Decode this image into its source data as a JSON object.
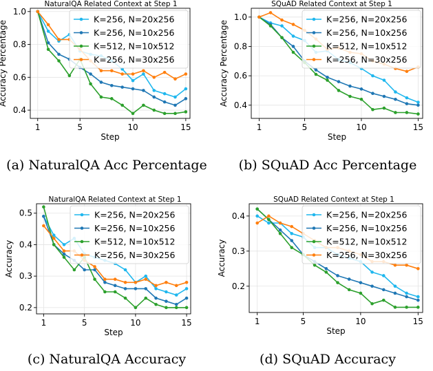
{
  "colors": {
    "K=256, N=20x256": "#1fb7ee",
    "K=256, N=10x256": "#1f77b4",
    "K=512, N=10x512": "#2ca02c",
    "K=256, N=30x256": "#ff7f0e"
  },
  "chart_data": [
    {
      "type": "line",
      "title": "NaturalQA Related Context at Step 1",
      "caption": "(a) NaturalQA Acc Percentage",
      "xlabel": "Step",
      "ylabel": "Accuracy Percentage",
      "xlim": [
        0.3,
        15.4
      ],
      "ylim": [
        0.35,
        1.02
      ],
      "xticks": [
        1,
        5,
        10,
        15
      ],
      "yticks": [
        0.4,
        0.6,
        0.8,
        1.0
      ],
      "ytick_labels": [
        "0.4",
        "0.6",
        "0.8",
        "1.0"
      ],
      "grid": true,
      "legend_position": "top-right",
      "x": [
        1,
        2,
        3,
        4,
        5,
        6,
        7,
        8,
        9,
        10,
        11,
        12,
        13,
        14,
        15
      ],
      "series": [
        {
          "name": "K=256, N=20x256",
          "values": [
            1.0,
            0.88,
            0.82,
            0.86,
            0.76,
            0.74,
            0.73,
            0.7,
            0.65,
            0.58,
            0.62,
            0.52,
            0.5,
            0.48,
            0.53
          ]
        },
        {
          "name": "K=256, N=10x256",
          "values": [
            1.0,
            0.81,
            0.74,
            0.71,
            0.66,
            0.62,
            0.57,
            0.55,
            0.54,
            0.53,
            0.52,
            0.48,
            0.45,
            0.43,
            0.47
          ]
        },
        {
          "name": "K=512, N=10x512",
          "values": [
            1.0,
            0.77,
            0.7,
            0.61,
            0.71,
            0.56,
            0.48,
            0.47,
            0.43,
            0.38,
            0.43,
            0.4,
            0.38,
            0.38,
            0.39
          ]
        },
        {
          "name": "K=256, N=30x256",
          "values": [
            1.0,
            0.92,
            0.83,
            0.83,
            0.77,
            0.7,
            0.64,
            0.64,
            0.62,
            0.62,
            0.64,
            0.6,
            0.63,
            0.59,
            0.62
          ]
        }
      ]
    },
    {
      "type": "line",
      "title": "SQuAD Related Context at Step 1",
      "caption": "(b) SQuAD Acc Percentage",
      "xlabel": "Step",
      "ylabel": "Accuracy Percentage",
      "xlim": [
        0.3,
        15.4
      ],
      "ylim": [
        0.31,
        1.06
      ],
      "xticks": [
        1,
        5,
        10,
        15
      ],
      "yticks": [
        0.4,
        0.6,
        0.8,
        1.0
      ],
      "ytick_labels": [
        "0.4",
        "0.6",
        "0.8",
        "1.0"
      ],
      "grid": true,
      "legend_position": "top-right",
      "x": [
        1,
        2,
        3,
        4,
        5,
        6,
        7,
        8,
        9,
        10,
        11,
        12,
        13,
        14,
        15
      ],
      "series": [
        {
          "name": "K=256, N=20x256",
          "values": [
            1.0,
            0.96,
            0.94,
            0.87,
            0.84,
            0.76,
            0.77,
            0.71,
            0.69,
            0.65,
            0.6,
            0.57,
            0.49,
            0.45,
            0.42
          ]
        },
        {
          "name": "K=256, N=10x256",
          "values": [
            1.0,
            0.95,
            0.86,
            0.8,
            0.7,
            0.64,
            0.59,
            0.56,
            0.53,
            0.51,
            0.48,
            0.46,
            0.44,
            0.41,
            0.4
          ]
        },
        {
          "name": "K=512, N=10x512",
          "values": [
            1.0,
            0.94,
            0.86,
            0.76,
            0.69,
            0.61,
            0.57,
            0.5,
            0.46,
            0.44,
            0.37,
            0.38,
            0.35,
            0.35,
            0.34
          ]
        },
        {
          "name": "K=256, N=30x256",
          "values": [
            1.0,
            1.03,
            0.98,
            0.95,
            0.91,
            0.85,
            0.78,
            0.79,
            0.76,
            0.75,
            0.7,
            0.68,
            0.65,
            0.63,
            0.66
          ]
        }
      ]
    },
    {
      "type": "line",
      "title": "NaturalQA Related Context at Step 1",
      "caption": "(c) NaturalQA Accuracy",
      "xlabel": "Step",
      "ylabel": "Accuracy",
      "xlim": [
        0.3,
        15.4
      ],
      "ylim": [
        0.18,
        0.53
      ],
      "xticks": [
        1,
        5,
        10,
        15
      ],
      "yticks": [
        0.2,
        0.3,
        0.4,
        0.5
      ],
      "ytick_labels": [
        "0.2",
        "0.3",
        "0.4",
        "0.5"
      ],
      "grid": true,
      "legend_position": "top-right",
      "x": [
        1,
        2,
        3,
        4,
        5,
        6,
        7,
        8,
        9,
        10,
        11,
        12,
        13,
        14,
        15
      ],
      "series": [
        {
          "name": "K=256, N=20x256",
          "values": [
            0.49,
            0.43,
            0.4,
            0.42,
            0.37,
            0.36,
            0.35,
            0.34,
            0.32,
            0.28,
            0.3,
            0.26,
            0.25,
            0.24,
            0.26
          ]
        },
        {
          "name": "K=256, N=10x256",
          "values": [
            0.49,
            0.4,
            0.37,
            0.35,
            0.32,
            0.32,
            0.28,
            0.27,
            0.26,
            0.26,
            0.26,
            0.23,
            0.22,
            0.21,
            0.23
          ]
        },
        {
          "name": "K=512, N=10x512",
          "values": [
            0.52,
            0.4,
            0.36,
            0.32,
            0.36,
            0.29,
            0.25,
            0.25,
            0.23,
            0.2,
            0.23,
            0.21,
            0.2,
            0.2,
            0.2
          ]
        },
        {
          "name": "K=256, N=30x256",
          "values": [
            0.46,
            0.42,
            0.38,
            0.38,
            0.35,
            0.33,
            0.29,
            0.29,
            0.28,
            0.28,
            0.29,
            0.27,
            0.28,
            0.27,
            0.28
          ]
        }
      ]
    },
    {
      "type": "line",
      "title": "SQuAD Related Context at Step 1",
      "caption": "(d) SQuAD Accuracy",
      "xlabel": "Step",
      "ylabel": "Accuracy",
      "xlim": [
        0.3,
        15.4
      ],
      "ylim": [
        0.125,
        0.435
      ],
      "xticks": [
        1,
        5,
        10,
        15
      ],
      "yticks": [
        0.2,
        0.3,
        0.4
      ],
      "ytick_labels": [
        "0.2",
        "0.3",
        "0.4"
      ],
      "grid": true,
      "legend_position": "top-right",
      "x": [
        1,
        2,
        3,
        4,
        5,
        6,
        7,
        8,
        9,
        10,
        11,
        12,
        13,
        14,
        15
      ],
      "series": [
        {
          "name": "K=256, N=20x256",
          "values": [
            0.4,
            0.38,
            0.38,
            0.35,
            0.34,
            0.31,
            0.31,
            0.29,
            0.28,
            0.27,
            0.24,
            0.23,
            0.2,
            0.18,
            0.17
          ]
        },
        {
          "name": "K=256, N=10x256",
          "values": [
            0.42,
            0.39,
            0.36,
            0.33,
            0.29,
            0.27,
            0.25,
            0.23,
            0.22,
            0.21,
            0.2,
            0.19,
            0.18,
            0.17,
            0.16
          ]
        },
        {
          "name": "K=512, N=10x512",
          "values": [
            0.42,
            0.39,
            0.35,
            0.31,
            0.29,
            0.26,
            0.24,
            0.21,
            0.19,
            0.18,
            0.15,
            0.16,
            0.14,
            0.14,
            0.14
          ]
        },
        {
          "name": "K=256, N=30x256",
          "values": [
            0.38,
            0.4,
            0.38,
            0.37,
            0.35,
            0.33,
            0.31,
            0.31,
            0.3,
            0.29,
            0.27,
            0.27,
            0.26,
            0.26,
            0.25
          ]
        }
      ]
    }
  ]
}
